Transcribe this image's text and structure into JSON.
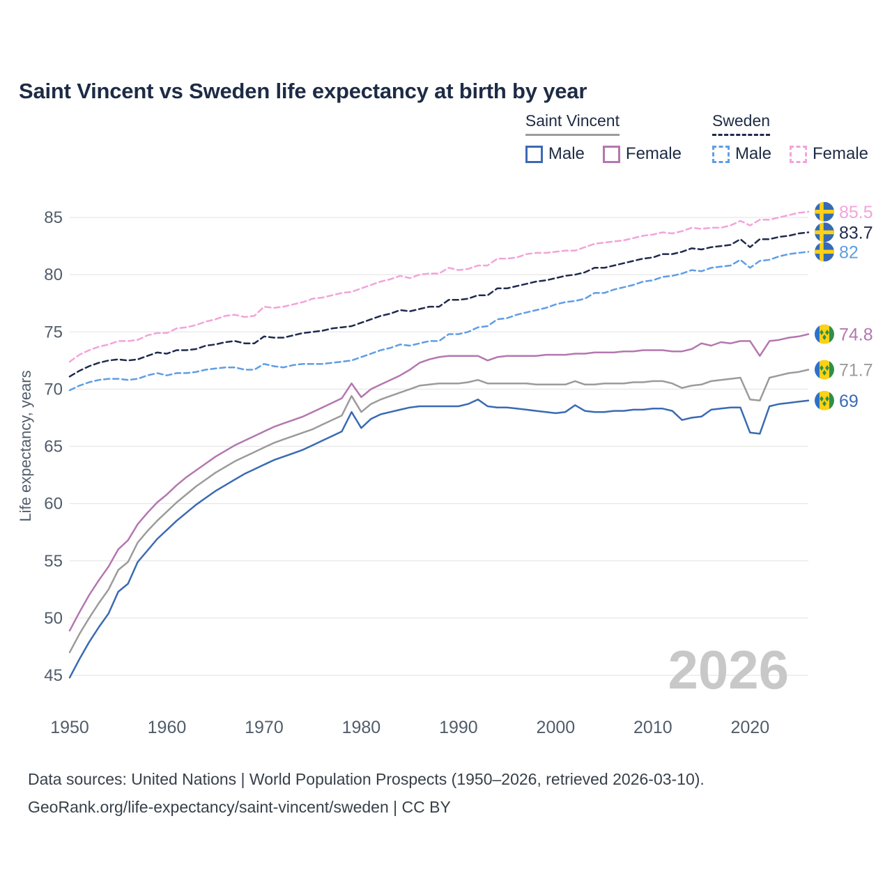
{
  "title": "Saint Vincent vs Sweden life expectancy at birth by year",
  "legend": {
    "groups": [
      {
        "label": "Saint Vincent",
        "style": "solid",
        "items": [
          {
            "label": "Male",
            "color": "#3a6ab3"
          },
          {
            "label": "Female",
            "color": "#b477af"
          }
        ]
      },
      {
        "label": "Sweden",
        "style": "dashed",
        "items": [
          {
            "label": "Male",
            "color": "#5f9de6"
          },
          {
            "label": "Female",
            "color": "#f2a4da"
          }
        ]
      }
    ]
  },
  "colors": {
    "grid": "#e7e7e7",
    "tick_label": "#515c6b",
    "title": "#1d2b45",
    "watermark": "#c8c8c8",
    "footer": "#37404a",
    "flag_se_blue": "#366bb3",
    "flag_se_yellow": "#fdd117",
    "flag_vc_blue": "#2e71c6",
    "flag_vc_yellow": "#fcd116",
    "flag_vc_green": "#2f8f46"
  },
  "chart_data": {
    "type": "line",
    "title": "Saint Vincent vs Sweden life expectancy at birth by year",
    "xlabel": "",
    "ylabel": "Life expectancy, years",
    "watermark": "2026",
    "grid": true,
    "legend_position": "top-right",
    "xlim": [
      1950,
      2026
    ],
    "ylim": [
      45,
      85
    ],
    "x_ticks": [
      1950,
      1960,
      1970,
      1980,
      1990,
      2000,
      2010,
      2020
    ],
    "y_ticks": [
      45,
      50,
      55,
      60,
      65,
      70,
      75,
      80,
      85
    ],
    "x": [
      1950,
      1951,
      1952,
      1953,
      1954,
      1955,
      1956,
      1957,
      1958,
      1959,
      1960,
      1961,
      1962,
      1963,
      1964,
      1965,
      1966,
      1967,
      1968,
      1969,
      1970,
      1971,
      1972,
      1973,
      1974,
      1975,
      1976,
      1977,
      1978,
      1979,
      1980,
      1981,
      1982,
      1983,
      1984,
      1985,
      1986,
      1987,
      1988,
      1989,
      1990,
      1991,
      1992,
      1993,
      1994,
      1995,
      1996,
      1997,
      1998,
      1999,
      2000,
      2001,
      2002,
      2003,
      2004,
      2005,
      2006,
      2007,
      2008,
      2009,
      2010,
      2011,
      2012,
      2013,
      2014,
      2015,
      2016,
      2017,
      2018,
      2019,
      2020,
      2021,
      2022,
      2023,
      2024,
      2025,
      2026
    ],
    "series": [
      {
        "id": "saint-vincent-male",
        "name": "Saint Vincent Male",
        "country": "Saint Vincent",
        "sex": "Male",
        "style": "solid",
        "color": "#3a6ab3",
        "flag": "vc",
        "end_label": "69",
        "values": [
          44.8,
          46.4,
          47.9,
          49.2,
          50.4,
          52.3,
          53.0,
          54.9,
          55.9,
          56.9,
          57.7,
          58.5,
          59.2,
          59.9,
          60.5,
          61.1,
          61.6,
          62.1,
          62.6,
          63.0,
          63.4,
          63.8,
          64.1,
          64.4,
          64.7,
          65.1,
          65.5,
          65.9,
          66.3,
          68.0,
          66.6,
          67.4,
          67.8,
          68.0,
          68.2,
          68.4,
          68.5,
          68.5,
          68.5,
          68.5,
          68.5,
          68.7,
          69.1,
          68.5,
          68.4,
          68.4,
          68.3,
          68.2,
          68.1,
          68.0,
          67.9,
          68.0,
          68.6,
          68.1,
          68.0,
          68.0,
          68.1,
          68.1,
          68.2,
          68.2,
          68.3,
          68.3,
          68.1,
          67.3,
          67.5,
          67.6,
          68.2,
          68.3,
          68.4,
          68.4,
          66.2,
          66.1,
          68.5,
          68.7,
          68.8,
          68.9,
          69.0
        ]
      },
      {
        "id": "saint-vincent-all",
        "name": "Saint Vincent Both sexes",
        "country": "Saint Vincent",
        "sex": "Both",
        "style": "solid",
        "color": "#9b9b9b",
        "flag": "vc",
        "end_label": "71.7",
        "values": [
          47.0,
          48.6,
          50.0,
          51.3,
          52.5,
          54.2,
          54.9,
          56.6,
          57.6,
          58.5,
          59.3,
          60.1,
          60.8,
          61.5,
          62.1,
          62.7,
          63.2,
          63.7,
          64.1,
          64.5,
          64.9,
          65.3,
          65.6,
          65.9,
          66.2,
          66.5,
          66.9,
          67.3,
          67.7,
          69.4,
          68.0,
          68.7,
          69.1,
          69.4,
          69.7,
          70.0,
          70.3,
          70.4,
          70.5,
          70.5,
          70.5,
          70.6,
          70.8,
          70.5,
          70.5,
          70.5,
          70.5,
          70.5,
          70.4,
          70.4,
          70.4,
          70.4,
          70.7,
          70.4,
          70.4,
          70.5,
          70.5,
          70.5,
          70.6,
          70.6,
          70.7,
          70.7,
          70.5,
          70.1,
          70.3,
          70.4,
          70.7,
          70.8,
          70.9,
          71.0,
          69.1,
          69.0,
          71.0,
          71.2,
          71.4,
          71.5,
          71.7
        ]
      },
      {
        "id": "saint-vincent-female",
        "name": "Saint Vincent Female",
        "country": "Saint Vincent",
        "sex": "Female",
        "style": "solid",
        "color": "#b477af",
        "flag": "vc",
        "end_label": "74.8",
        "values": [
          48.9,
          50.5,
          52.0,
          53.3,
          54.5,
          56.0,
          56.8,
          58.2,
          59.2,
          60.1,
          60.8,
          61.6,
          62.3,
          62.9,
          63.5,
          64.1,
          64.6,
          65.1,
          65.5,
          65.9,
          66.3,
          66.7,
          67.0,
          67.3,
          67.6,
          68.0,
          68.4,
          68.8,
          69.2,
          70.5,
          69.3,
          70.0,
          70.4,
          70.8,
          71.2,
          71.7,
          72.3,
          72.6,
          72.8,
          72.9,
          72.9,
          72.9,
          72.9,
          72.5,
          72.8,
          72.9,
          72.9,
          72.9,
          72.9,
          73.0,
          73.0,
          73.0,
          73.1,
          73.1,
          73.2,
          73.2,
          73.2,
          73.3,
          73.3,
          73.4,
          73.4,
          73.4,
          73.3,
          73.3,
          73.5,
          74.0,
          73.8,
          74.1,
          74.0,
          74.2,
          74.2,
          72.9,
          74.2,
          74.3,
          74.5,
          74.6,
          74.8
        ]
      },
      {
        "id": "sweden-male",
        "name": "Sweden Male",
        "country": "Sweden",
        "sex": "Male",
        "style": "dashed",
        "color": "#5f9de6",
        "flag": "se",
        "end_label": "82",
        "values": [
          69.9,
          70.3,
          70.6,
          70.8,
          70.9,
          70.9,
          70.8,
          70.9,
          71.2,
          71.4,
          71.2,
          71.4,
          71.4,
          71.5,
          71.7,
          71.8,
          71.9,
          71.9,
          71.7,
          71.7,
          72.2,
          72.0,
          71.9,
          72.1,
          72.2,
          72.2,
          72.2,
          72.3,
          72.4,
          72.5,
          72.8,
          73.1,
          73.4,
          73.6,
          73.9,
          73.8,
          74.0,
          74.2,
          74.2,
          74.8,
          74.8,
          75.0,
          75.4,
          75.5,
          76.1,
          76.2,
          76.5,
          76.7,
          76.9,
          77.1,
          77.4,
          77.6,
          77.7,
          77.9,
          78.4,
          78.4,
          78.7,
          78.9,
          79.1,
          79.4,
          79.5,
          79.8,
          79.9,
          80.1,
          80.4,
          80.3,
          80.6,
          80.7,
          80.8,
          81.3,
          80.6,
          81.2,
          81.3,
          81.6,
          81.8,
          81.9,
          82.0
        ]
      },
      {
        "id": "sweden-all",
        "name": "Sweden Both sexes",
        "country": "Sweden",
        "sex": "Both",
        "style": "dashed",
        "color": "#1f2b4d",
        "flag": "se",
        "end_label": "83.7",
        "values": [
          71.1,
          71.6,
          72.0,
          72.3,
          72.5,
          72.6,
          72.5,
          72.6,
          72.9,
          73.2,
          73.1,
          73.4,
          73.4,
          73.5,
          73.8,
          73.9,
          74.1,
          74.2,
          74.0,
          74.0,
          74.6,
          74.5,
          74.5,
          74.7,
          74.9,
          75.0,
          75.1,
          75.3,
          75.4,
          75.5,
          75.8,
          76.1,
          76.4,
          76.6,
          76.9,
          76.8,
          77.0,
          77.2,
          77.2,
          77.8,
          77.8,
          77.9,
          78.2,
          78.2,
          78.8,
          78.8,
          79.0,
          79.2,
          79.4,
          79.5,
          79.7,
          79.9,
          80.0,
          80.2,
          80.6,
          80.6,
          80.8,
          81.0,
          81.2,
          81.4,
          81.5,
          81.8,
          81.8,
          82.0,
          82.3,
          82.2,
          82.4,
          82.5,
          82.6,
          83.1,
          82.4,
          83.1,
          83.1,
          83.3,
          83.4,
          83.6,
          83.7
        ]
      },
      {
        "id": "sweden-female",
        "name": "Sweden Female",
        "country": "Sweden",
        "sex": "Female",
        "style": "dashed",
        "color": "#f2a4da",
        "flag": "se",
        "end_label": "85.5",
        "values": [
          72.4,
          73.0,
          73.4,
          73.7,
          73.9,
          74.2,
          74.2,
          74.3,
          74.7,
          74.9,
          74.9,
          75.3,
          75.4,
          75.6,
          75.9,
          76.1,
          76.4,
          76.5,
          76.3,
          76.4,
          77.2,
          77.1,
          77.2,
          77.4,
          77.6,
          77.9,
          78.0,
          78.2,
          78.4,
          78.5,
          78.8,
          79.1,
          79.4,
          79.6,
          79.9,
          79.7,
          80.0,
          80.1,
          80.1,
          80.6,
          80.4,
          80.5,
          80.8,
          80.8,
          81.4,
          81.4,
          81.5,
          81.8,
          81.9,
          81.9,
          82.0,
          82.1,
          82.1,
          82.4,
          82.7,
          82.8,
          82.9,
          83.0,
          83.2,
          83.4,
          83.5,
          83.7,
          83.6,
          83.8,
          84.1,
          84.0,
          84.1,
          84.1,
          84.3,
          84.7,
          84.3,
          84.8,
          84.8,
          85.0,
          85.2,
          85.4,
          85.5
        ]
      }
    ]
  },
  "footer": {
    "line1": "Data sources: United Nations | World Population Prospects (1950–2026, retrieved 2026-03-10).",
    "line2": "GeoRank.org/life-expectancy/saint-vincent/sweden | CC BY"
  }
}
